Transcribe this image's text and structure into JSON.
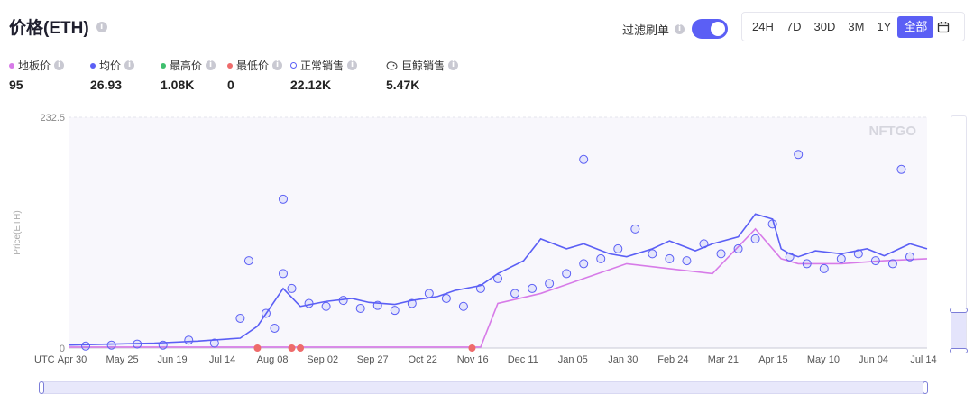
{
  "header": {
    "title": "价格(ETH)",
    "filter_label": "过滤刷单",
    "filter_on": true
  },
  "ranges": {
    "items": [
      "24H",
      "7D",
      "30D",
      "3M",
      "1Y",
      "全部"
    ],
    "active": "全部"
  },
  "stats": [
    {
      "label": "地板价",
      "value": "95",
      "marker": "dot",
      "color": "#d77be8"
    },
    {
      "label": "均价",
      "value": "26.93",
      "marker": "dot",
      "color": "#5b5ff5"
    },
    {
      "label": "最高价",
      "value": "1.08K",
      "marker": "dot",
      "color": "#3fbf6e"
    },
    {
      "label": "最低价",
      "value": "0",
      "marker": "dot",
      "color": "#ee6b6b"
    },
    {
      "label": "正常销售",
      "value": "22.12K",
      "marker": "ring",
      "color": "#5b5ff5"
    },
    {
      "label": "巨鲸销售",
      "value": "5.47K",
      "marker": "whale",
      "color": "#444"
    }
  ],
  "chart_data": {
    "type": "scatter",
    "ylabel": "Price(ETH)",
    "ylim": [
      0,
      232.5
    ],
    "y_ticks": [
      "0",
      "232.5"
    ],
    "x_ticks": [
      "UTC",
      "Apr 30",
      "May 25",
      "Jun 19",
      "Jul 14",
      "Aug 08",
      "Sep 02",
      "Sep 27",
      "Oct 22",
      "Nov 16",
      "Dec 11",
      "Jan 05",
      "Jan 30",
      "Feb 24",
      "Mar 21",
      "Apr 15",
      "May 10",
      "Jun 04",
      "Jul 14"
    ],
    "watermark": "NFTGO",
    "series": [
      {
        "name": "均价",
        "type": "line",
        "color": "#5b5ff5",
        "x": [
          0,
          0.05,
          0.1,
          0.15,
          0.2,
          0.22,
          0.25,
          0.27,
          0.3,
          0.33,
          0.35,
          0.38,
          0.4,
          0.43,
          0.45,
          0.48,
          0.5,
          0.53,
          0.55,
          0.58,
          0.6,
          0.63,
          0.65,
          0.68,
          0.7,
          0.73,
          0.75,
          0.78,
          0.8,
          0.82,
          0.83,
          0.84,
          0.85,
          0.87,
          0.9,
          0.93,
          0.95,
          0.98,
          1
        ],
        "values": [
          3,
          4,
          5,
          7,
          10,
          22,
          60,
          42,
          47,
          50,
          46,
          44,
          48,
          52,
          58,
          63,
          75,
          88,
          110,
          100,
          105,
          95,
          92,
          100,
          108,
          98,
          105,
          112,
          135,
          130,
          100,
          95,
          92,
          98,
          95,
          100,
          93,
          105,
          100
        ]
      },
      {
        "name": "地板价",
        "type": "line",
        "color": "#d77be8",
        "x": [
          0,
          0.1,
          0.2,
          0.3,
          0.4,
          0.44,
          0.48,
          0.5,
          0.55,
          0.6,
          0.65,
          0.7,
          0.75,
          0.8,
          0.83,
          0.85,
          0.9,
          0.95,
          1
        ],
        "values": [
          1,
          1,
          1,
          1,
          1,
          1,
          1,
          45,
          55,
          70,
          85,
          80,
          75,
          120,
          90,
          85,
          85,
          88,
          90
        ]
      },
      {
        "name": "正常销售",
        "type": "scatter",
        "color": "#5b5ff5",
        "x": [
          0.02,
          0.05,
          0.08,
          0.11,
          0.14,
          0.17,
          0.2,
          0.21,
          0.23,
          0.24,
          0.25,
          0.26,
          0.28,
          0.3,
          0.32,
          0.34,
          0.36,
          0.38,
          0.4,
          0.42,
          0.44,
          0.46,
          0.48,
          0.5,
          0.52,
          0.54,
          0.56,
          0.58,
          0.6,
          0.62,
          0.64,
          0.66,
          0.68,
          0.7,
          0.72,
          0.74,
          0.76,
          0.78,
          0.8,
          0.82,
          0.84,
          0.86,
          0.88,
          0.9,
          0.92,
          0.94,
          0.96,
          0.98,
          0.25,
          0.6,
          0.85,
          0.97
        ],
        "values": [
          2,
          3,
          4,
          3,
          8,
          5,
          30,
          88,
          35,
          20,
          75,
          60,
          45,
          42,
          48,
          40,
          43,
          38,
          45,
          55,
          50,
          42,
          60,
          70,
          55,
          60,
          65,
          75,
          85,
          90,
          100,
          120,
          95,
          90,
          88,
          105,
          95,
          100,
          110,
          125,
          92,
          85,
          80,
          90,
          95,
          88,
          85,
          92,
          150,
          190,
          195,
          180
        ]
      },
      {
        "name": "最低价",
        "type": "scatter",
        "color": "#ee6b6b",
        "x": [
          0.22,
          0.26,
          0.27,
          0.47
        ],
        "values": [
          0,
          0,
          0,
          0
        ]
      }
    ]
  }
}
